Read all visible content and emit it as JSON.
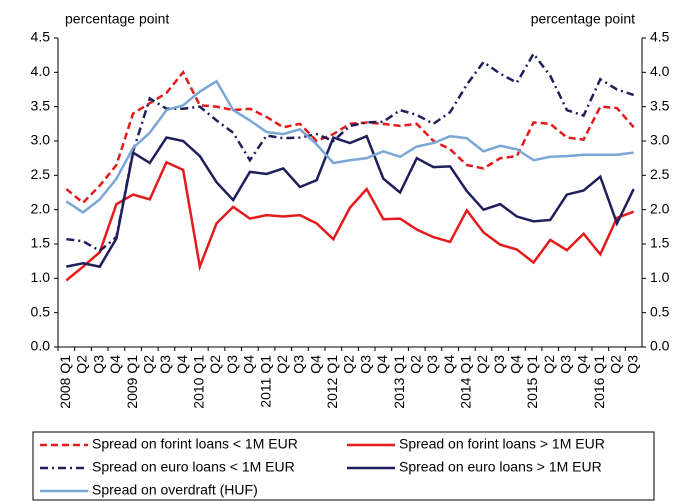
{
  "chart_data": {
    "type": "line",
    "ylabel": "percentage point",
    "y2label": "percentage point",
    "categories": [
      "2008 Q1",
      "Q2",
      "Q3",
      "Q4",
      "2009 Q1",
      "Q2",
      "Q3",
      "Q4",
      "2010 Q1",
      "Q2",
      "Q3",
      "Q4",
      "2011 Q1",
      "Q2",
      "Q3",
      "Q4",
      "2012 Q1",
      "Q2",
      "Q3",
      "Q4",
      "2013 Q1",
      "Q2",
      "Q3",
      "Q4",
      "2014 Q1",
      "Q2",
      "Q3",
      "Q4",
      "2015 Q1",
      "Q2",
      "Q3",
      "Q4",
      "2016 Q1",
      "Q2",
      "Q3"
    ],
    "series": [
      {
        "name": "Spread on forint loans < 1M EUR",
        "color": "#e41a1c",
        "line_style": "dashed",
        "values": [
          2.3,
          2.1,
          2.35,
          2.65,
          3.4,
          3.55,
          3.7,
          4.0,
          3.52,
          3.5,
          3.45,
          3.47,
          3.35,
          3.2,
          3.25,
          3.0,
          3.1,
          3.25,
          3.27,
          3.25,
          3.22,
          3.25,
          3.0,
          2.88,
          2.65,
          2.6,
          2.75,
          2.78,
          3.27,
          3.25,
          3.05,
          3.02,
          3.5,
          3.48,
          3.2
        ]
      },
      {
        "name": "Spread on forint loans > 1M EUR",
        "color": "#e41a1c",
        "line_style": "solid",
        "values": [
          0.97,
          1.17,
          1.38,
          2.08,
          2.22,
          2.15,
          2.69,
          2.58,
          1.17,
          1.8,
          2.04,
          1.87,
          1.92,
          1.9,
          1.92,
          1.8,
          1.57,
          2.03,
          2.3,
          1.86,
          1.87,
          1.71,
          1.6,
          1.53,
          1.99,
          1.67,
          1.49,
          1.42,
          1.23,
          1.56,
          1.41,
          1.65,
          1.35,
          1.88,
          1.97
        ]
      },
      {
        "name": "Spread on euro loans < 1M EUR",
        "color": "#1f1f5c",
        "line_style": "dashdot",
        "values": [
          1.57,
          1.54,
          1.4,
          1.6,
          2.85,
          3.62,
          3.47,
          3.47,
          3.5,
          3.3,
          3.12,
          2.72,
          3.08,
          3.04,
          3.05,
          3.1,
          3.0,
          3.22,
          3.27,
          3.28,
          3.45,
          3.38,
          3.25,
          3.42,
          3.82,
          4.15,
          3.98,
          3.85,
          4.27,
          3.95,
          3.45,
          3.37,
          3.9,
          3.75,
          3.67
        ]
      },
      {
        "name": "Spread on euro loans > 1M EUR",
        "color": "#1f1f5c",
        "line_style": "solid",
        "values": [
          1.17,
          1.22,
          1.17,
          1.58,
          2.83,
          2.68,
          3.05,
          3.0,
          2.78,
          2.4,
          2.14,
          2.55,
          2.52,
          2.6,
          2.33,
          2.43,
          3.05,
          2.97,
          3.07,
          2.45,
          2.25,
          2.75,
          2.62,
          2.63,
          2.27,
          2.0,
          2.08,
          1.9,
          1.83,
          1.85,
          2.22,
          2.28,
          2.48,
          1.8,
          2.3
        ]
      },
      {
        "name": "Spread on overdraft (HUF)",
        "color": "#7ba7d7",
        "line_style": "solid",
        "values": [
          2.12,
          1.96,
          2.15,
          2.45,
          2.9,
          3.12,
          3.45,
          3.52,
          3.72,
          3.87,
          3.45,
          3.3,
          3.13,
          3.1,
          3.17,
          2.95,
          2.68,
          2.72,
          2.75,
          2.85,
          2.77,
          2.92,
          2.97,
          3.07,
          3.04,
          2.85,
          2.93,
          2.88,
          2.72,
          2.77,
          2.78,
          2.8,
          2.8,
          2.8,
          2.83
        ]
      }
    ],
    "ylim": [
      0,
      4.5
    ],
    "yticks": [
      {
        "value": 0,
        "label": "0.0"
      },
      {
        "value": 0.5,
        "label": "0.5"
      },
      {
        "value": 1,
        "label": "1.0"
      },
      {
        "value": 1.5,
        "label": "1.5"
      },
      {
        "value": 2,
        "label": "2.0"
      },
      {
        "value": 2.5,
        "label": "2.5"
      },
      {
        "value": 3,
        "label": "3.0"
      },
      {
        "value": 3.5,
        "label": "3.5"
      },
      {
        "value": 4,
        "label": "4.0"
      },
      {
        "value": 4.5,
        "label": "4.5"
      }
    ],
    "y2lim": [
      0,
      4.5
    ],
    "y2ticks": [
      {
        "value": 0,
        "label": "0.0"
      },
      {
        "value": 0.5,
        "label": "0.5"
      },
      {
        "value": 1,
        "label": "1.0"
      },
      {
        "value": 1.5,
        "label": "1.5"
      },
      {
        "value": 2,
        "label": "2.0"
      },
      {
        "value": 2.5,
        "label": "2.5"
      },
      {
        "value": 3,
        "label": "3.0"
      },
      {
        "value": 3.5,
        "label": "3.5"
      },
      {
        "value": 4,
        "label": "4.0"
      },
      {
        "value": 4.5,
        "label": "4.5"
      }
    ],
    "grid": false,
    "legend": "bottom"
  }
}
